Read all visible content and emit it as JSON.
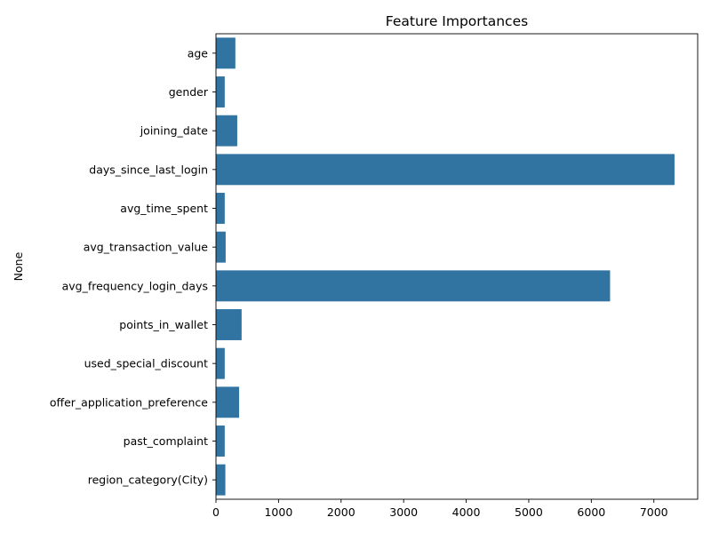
{
  "chart_data": {
    "type": "bar",
    "orientation": "horizontal",
    "title": "Feature Importances",
    "xlabel": "",
    "ylabel": "None",
    "categories": [
      "age",
      "gender",
      "joining_date",
      "days_since_last_login",
      "avg_time_spent",
      "avg_transaction_value",
      "avg_frequency_login_days",
      "points_in_wallet",
      "used_special_discount",
      "offer_application_preference",
      "past_complaint",
      "region_category(City)"
    ],
    "values": [
      310,
      140,
      340,
      7330,
      140,
      155,
      6300,
      410,
      140,
      370,
      140,
      150
    ],
    "xlim": [
      0,
      7700
    ],
    "xticks": [
      0,
      1000,
      2000,
      3000,
      4000,
      5000,
      6000,
      7000
    ],
    "grid": false,
    "bar_color": "#3274a1"
  }
}
